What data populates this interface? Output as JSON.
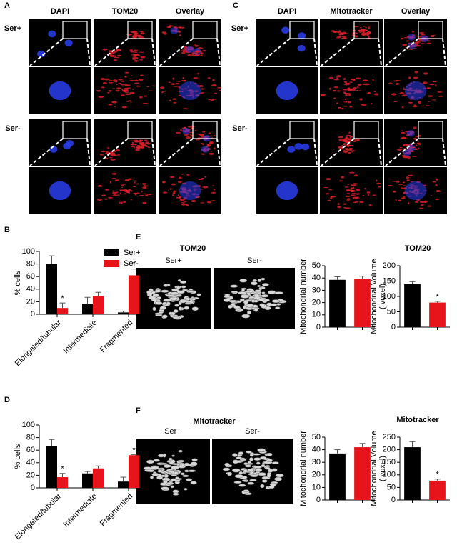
{
  "panel_letters": [
    "A",
    "B",
    "C",
    "D",
    "E",
    "F"
  ],
  "panel_a": {
    "columns": [
      "DAPI",
      "TOM20",
      "Overlay"
    ],
    "rows": [
      "Ser+",
      "Ser-"
    ]
  },
  "panel_c": {
    "columns": [
      "DAPI",
      "Mitotracker",
      "Overlay"
    ],
    "rows": [
      "Ser+",
      "Ser-"
    ]
  },
  "panel_e": {
    "title": "TOM20",
    "images": [
      "Ser+",
      "Ser-"
    ]
  },
  "panel_f": {
    "title": "Mitotracker",
    "images": [
      "Ser+",
      "Ser-"
    ]
  },
  "chart_data": [
    {
      "type": "bar",
      "categories": [
        "Elongated/tubular",
        "Intermediate",
        "Fragmented"
      ],
      "ylabel": "% cells",
      "series": [
        {
          "name": "Ser+",
          "color": "#000000",
          "values": [
            80,
            17,
            3
          ],
          "errors": [
            13,
            10,
            2
          ],
          "significant": [
            false,
            false,
            false
          ]
        },
        {
          "name": "Ser-",
          "color": "#e8141c",
          "values": [
            10,
            29,
            62
          ],
          "errors": [
            8,
            6,
            10
          ],
          "significant": [
            true,
            false,
            true
          ]
        }
      ],
      "annotation": "*",
      "ylim": [
        0,
        100
      ],
      "yticks": [
        0,
        20,
        40,
        60,
        80,
        100
      ],
      "legend": "upper right"
    },
    {
      "type": "bar",
      "categories": [
        "Elongated/tubular",
        "Intermediate",
        "Fragmented"
      ],
      "ylabel": "% cells",
      "series": [
        {
          "name": "Ser+",
          "color": "#000000",
          "values": [
            67,
            23,
            10
          ],
          "errors": [
            10,
            3,
            7
          ],
          "significant": [
            false,
            false,
            false
          ]
        },
        {
          "name": "Ser-",
          "color": "#e8141c",
          "values": [
            17,
            31,
            52
          ],
          "errors": [
            6,
            4,
            1
          ],
          "significant": [
            true,
            false,
            true
          ]
        }
      ],
      "annotation": "*",
      "ylim": [
        0,
        100
      ],
      "yticks": [
        0,
        20,
        40,
        60,
        80,
        100
      ]
    },
    {
      "type": "bar",
      "ylabel": [
        "Mitochondrial number"
      ],
      "categories": [
        null,
        null
      ],
      "values": [
        38.5,
        39
      ],
      "errors": [
        2.5,
        2.5
      ],
      "colors": [
        "#000000",
        "#e8141c"
      ],
      "significant": [
        false,
        false
      ],
      "ylim": [
        0,
        50
      ],
      "yticks": [
        0,
        10,
        20,
        30,
        40,
        50
      ]
    },
    {
      "type": "bar",
      "title": "TOM20",
      "ylabel": [
        "Mitochondrial Volume",
        "( voxel)"
      ],
      "categories": [
        null,
        null
      ],
      "values": [
        140,
        80
      ],
      "errors": [
        8,
        4
      ],
      "colors": [
        "#000000",
        "#e8141c"
      ],
      "significant": [
        false,
        true
      ],
      "annotation": "*",
      "ylim": [
        0,
        200
      ],
      "yticks": [
        0,
        50,
        100,
        150,
        200
      ]
    },
    {
      "type": "bar",
      "ylabel": [
        "Mitochondrial number"
      ],
      "categories": [
        null,
        null
      ],
      "values": [
        37,
        42
      ],
      "errors": [
        3,
        3
      ],
      "colors": [
        "#000000",
        "#e8141c"
      ],
      "significant": [
        false,
        false
      ],
      "ylim": [
        0,
        50
      ],
      "yticks": [
        0,
        10,
        20,
        30,
        40,
        50
      ]
    },
    {
      "type": "bar",
      "title": "Mitotracker",
      "ylabel": [
        "Mitochondrial Volume",
        "( voxel)"
      ],
      "categories": [
        null,
        null
      ],
      "values": [
        210,
        77
      ],
      "errors": [
        22,
        6
      ],
      "colors": [
        "#000000",
        "#e8141c"
      ],
      "significant": [
        false,
        true
      ],
      "annotation": "*",
      "ylim": [
        0,
        250
      ],
      "yticks": [
        0,
        50,
        100,
        150,
        200,
        250
      ]
    }
  ]
}
